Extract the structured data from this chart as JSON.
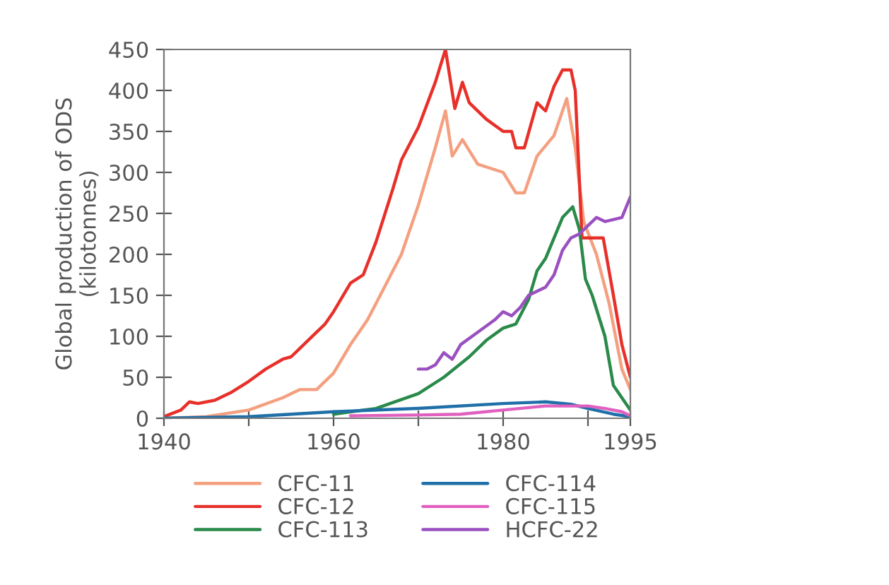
{
  "chart_data": {
    "type": "line",
    "ylabel": "Global production of ODS\n(kilotonnes)",
    "xlim": [
      1940,
      1995
    ],
    "xticks": [
      1940,
      {
        "value": 1950,
        "label": null
      },
      1960,
      {
        "value": 1970,
        "label": null
      },
      1980,
      {
        "value": 1990,
        "label": null
      },
      1995
    ],
    "ylim": [
      0,
      450
    ],
    "yticks": [
      0,
      50,
      100,
      150,
      200,
      250,
      300,
      350,
      400,
      450
    ],
    "grid": false,
    "legend": "bottom",
    "line_style": "solid",
    "marker": "none",
    "series": [
      {
        "name": "CFC-11",
        "color": "#f4a080",
        "x": [
          1940,
          1945,
          1950,
          1954,
          1956,
          1958,
          1960,
          1962,
          1964,
          1966,
          1968,
          1970,
          1972,
          1973.2,
          1974,
          1975.2,
          1977,
          1980,
          1981.5,
          1982.5,
          1984,
          1986,
          1987.5,
          1988.5,
          1989.5,
          1991,
          1992.5,
          1994,
          1995
        ],
        "values": [
          0,
          2,
          10,
          25,
          35,
          35,
          55,
          90,
          120,
          160,
          200,
          260,
          330,
          375,
          320,
          340,
          310,
          300,
          275,
          275,
          320,
          345,
          390,
          330,
          240,
          200,
          140,
          60,
          35
        ]
      },
      {
        "name": "CFC-12",
        "color": "#e8302a",
        "x": [
          1940,
          1942,
          1943,
          1944,
          1946,
          1948,
          1950,
          1952,
          1954,
          1955,
          1956,
          1958,
          1959,
          1960,
          1962,
          1963.5,
          1965,
          1967,
          1968,
          1970,
          1972,
          1973.2,
          1974.3,
          1975.2,
          1976,
          1978,
          1980,
          1981,
          1981.5,
          1982.5,
          1984,
          1985,
          1986,
          1987,
          1988,
          1988.5,
          1989.3,
          1991.8,
          1993,
          1994,
          1995
        ],
        "values": [
          2,
          10,
          20,
          18,
          22,
          32,
          45,
          60,
          72,
          75,
          85,
          105,
          115,
          130,
          165,
          175,
          215,
          280,
          315,
          355,
          410,
          450,
          378,
          410,
          385,
          365,
          350,
          350,
          330,
          330,
          385,
          375,
          405,
          425,
          425,
          400,
          220,
          220,
          150,
          90,
          50
        ]
      },
      {
        "name": "CFC-113",
        "color": "#2a8a4a",
        "x": [
          1960,
          1965,
          1970,
          1973,
          1976,
          1978,
          1980,
          1981.5,
          1983,
          1984,
          1985,
          1986,
          1987,
          1988.2,
          1989,
          1989.7,
          1990.5,
          1992,
          1993,
          1994,
          1995
        ],
        "values": [
          5,
          12,
          30,
          50,
          75,
          95,
          110,
          115,
          145,
          180,
          195,
          220,
          245,
          258,
          230,
          170,
          150,
          100,
          40,
          25,
          10
        ]
      },
      {
        "name": "CFC-114",
        "color": "#1f6fa8",
        "x": [
          1940,
          1950,
          1960,
          1970,
          1980,
          1985,
          1988,
          1990,
          1993,
          1995
        ],
        "values": [
          0,
          2,
          8,
          12,
          18,
          20,
          17,
          12,
          5,
          2
        ]
      },
      {
        "name": "CFC-115",
        "color": "#e060c0",
        "x": [
          1962,
          1970,
          1975,
          1980,
          1985,
          1990,
          1992,
          1994,
          1995
        ],
        "values": [
          3,
          4,
          5,
          10,
          15,
          15,
          12,
          8,
          3
        ]
      },
      {
        "name": "HCFC-22",
        "color": "#9a50c0",
        "x": [
          1970,
          1971,
          1972,
          1973,
          1974,
          1975,
          1977,
          1979,
          1980,
          1981,
          1982,
          1983,
          1985,
          1986,
          1987,
          1988,
          1989,
          1990,
          1991,
          1992,
          1994,
          1995
        ],
        "values": [
          60,
          60,
          65,
          80,
          72,
          90,
          105,
          120,
          130,
          125,
          135,
          150,
          160,
          175,
          205,
          220,
          225,
          235,
          245,
          240,
          245,
          270
        ]
      }
    ]
  }
}
